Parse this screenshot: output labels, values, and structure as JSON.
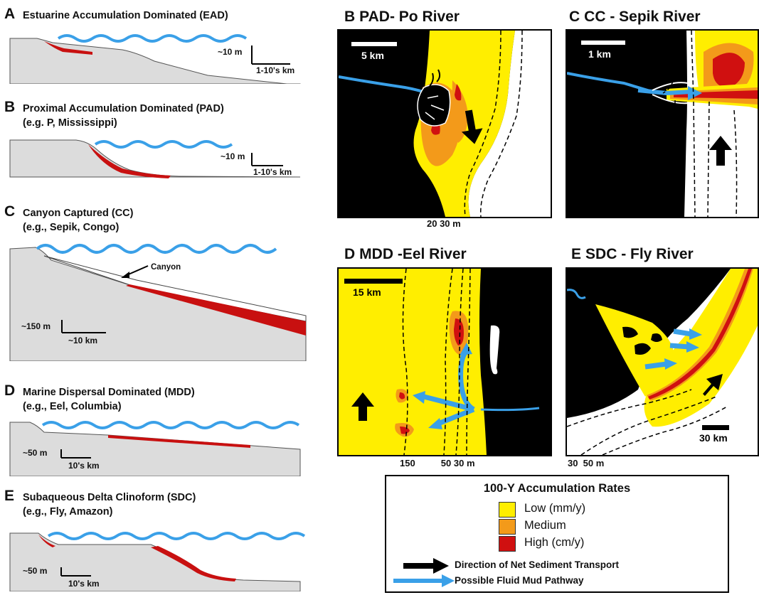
{
  "left_panels": [
    {
      "letter": "A",
      "title": "Estuarine Accumulation Dominated (EAD)",
      "subtitle": "",
      "vscale": "~10 m",
      "hscale": "1-10's km"
    },
    {
      "letter": "B",
      "title": "Proximal Accumulation Dominated (PAD)",
      "subtitle": "(e.g. P, Mississippi)",
      "vscale": "~10 m",
      "hscale": "1-10's km"
    },
    {
      "letter": "C",
      "title": "Canyon Captured (CC)",
      "subtitle": "(e.g., Sepik, Congo)",
      "vscale": "~150 m",
      "hscale": "~10 km",
      "annotation": "Canyon"
    },
    {
      "letter": "D",
      "title": "Marine Dispersal Dominated (MDD)",
      "subtitle": "(e.g., Eel, Columbia)",
      "vscale": "~50 m",
      "hscale": "10's km"
    },
    {
      "letter": "E",
      "title": "Subaqueous Delta Clinoform (SDC)",
      "subtitle": "(e.g., Fly, Amazon)",
      "vscale": "~50 m",
      "hscale": "10's km"
    }
  ],
  "maps": {
    "b": {
      "letter": "B",
      "title": "PAD- Po River",
      "scale": "5 km",
      "depths": "20 30 m"
    },
    "c": {
      "letter": "C",
      "title": "CC - Sepik River",
      "scale": "1 km",
      "depths": ""
    },
    "d": {
      "letter": "D",
      "title": "MDD -Eel River",
      "scale": "15 km",
      "depths": "150          50 30 m"
    },
    "e": {
      "letter": "E",
      "title": "SDC - Fly  River",
      "scale": "30 km",
      "depths": "30  50 m"
    }
  },
  "legend": {
    "title": "100-Y Accumulation Rates",
    "low": "Low (mm/y)",
    "medium": "Medium",
    "high": "High (cm/y)",
    "transport": "Direction of Net Sediment Transport",
    "mud": "Possible Fluid Mud Pathway"
  },
  "colors": {
    "low": "#ffee00",
    "medium": "#f39a1a",
    "high": "#d01010",
    "water": "#3aa0e8",
    "land": "#000000",
    "profile": "#dcdcdc"
  }
}
